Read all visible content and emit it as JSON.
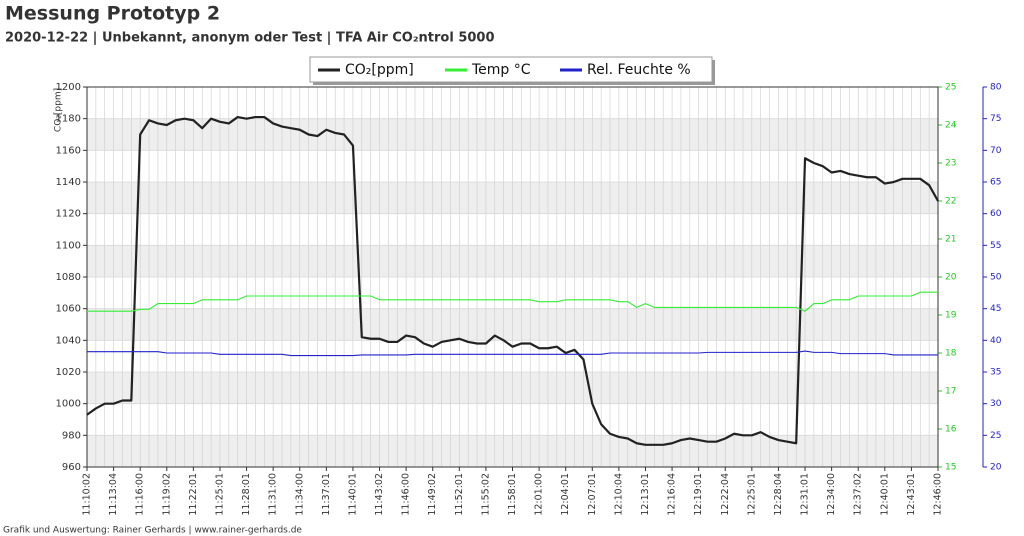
{
  "chart_data": {
    "type": "line",
    "title": "Messung Prototyp 2",
    "subtitle": "2020-12-22 | Unbekannt, anonym oder Test | TFA Air CO₂ntrol 5000",
    "footer": "Grafik und Auswertung: Rainer Gerhards | www.rainer-gerhards.de",
    "ylabel": "CO₂[ppm]",
    "categories": [
      "11:10:02",
      null,
      null,
      "11:13:04",
      null,
      null,
      "11:16:00",
      null,
      null,
      "11:19:02",
      null,
      null,
      "11:22:01",
      null,
      null,
      "11:25:01",
      null,
      null,
      "11:28:01",
      null,
      null,
      "11:31:00",
      null,
      null,
      "11:34:00",
      null,
      null,
      "11:37:01",
      null,
      null,
      "11:40:01",
      null,
      null,
      "11:43:02",
      null,
      null,
      "11:46:00",
      null,
      null,
      "11:49:02",
      null,
      null,
      "11:52:01",
      null,
      null,
      "11:55:02",
      null,
      null,
      "11:58:01",
      null,
      null,
      "12:01:00",
      null,
      null,
      "12:04:01",
      null,
      null,
      "12:07:01",
      null,
      null,
      "12:10:04",
      null,
      null,
      "12:13:01",
      null,
      null,
      "12:16:04",
      null,
      null,
      "12:19:01",
      null,
      null,
      "12:22:04",
      null,
      null,
      "12:25:01",
      null,
      null,
      "12:28:04",
      null,
      null,
      "12:31:01",
      null,
      null,
      "12:34:00",
      null,
      null,
      "12:37:02",
      null,
      null,
      "12:40:01",
      null,
      null,
      "12:43:01",
      null,
      null,
      "12:46:00"
    ],
    "series": [
      {
        "name": "CO₂[ppm]",
        "color": "#222222",
        "axis": "y",
        "values": [
          993,
          997,
          1000,
          1000,
          1002,
          1002,
          1170,
          1179,
          1177,
          1176,
          1179,
          1180,
          1179,
          1174,
          1180,
          1178,
          1177,
          1181,
          1180,
          1181,
          1181,
          1177,
          1175,
          1174,
          1173,
          1170,
          1169,
          1173,
          1171,
          1170,
          1163,
          1042,
          1041,
          1041,
          1039,
          1039,
          1043,
          1042,
          1038,
          1036,
          1039,
          1040,
          1041,
          1039,
          1038,
          1038,
          1043,
          1040,
          1036,
          1038,
          1038,
          1035,
          1035,
          1036,
          1032,
          1034,
          1028,
          1000,
          987,
          981,
          979,
          978,
          975,
          974,
          974,
          974,
          975,
          977,
          978,
          977,
          976,
          976,
          978,
          981,
          980,
          980,
          982,
          979,
          977,
          976,
          975,
          1155,
          1152,
          1150,
          1146,
          1147,
          1145,
          1144,
          1143,
          1143,
          1139,
          1140,
          1142,
          1142,
          1142,
          1138,
          1128
        ]
      },
      {
        "name": "Temp °C",
        "color": "#33ee33",
        "axis": "y2",
        "values": [
          19.1,
          19.1,
          19.1,
          19.1,
          19.1,
          19.1,
          19.15,
          19.15,
          19.3,
          19.3,
          19.3,
          19.3,
          19.3,
          19.4,
          19.4,
          19.4,
          19.4,
          19.4,
          19.5,
          19.5,
          19.5,
          19.5,
          19.5,
          19.5,
          19.5,
          19.5,
          19.5,
          19.5,
          19.5,
          19.5,
          19.5,
          19.5,
          19.5,
          19.4,
          19.4,
          19.4,
          19.4,
          19.4,
          19.4,
          19.4,
          19.4,
          19.4,
          19.4,
          19.4,
          19.4,
          19.4,
          19.4,
          19.4,
          19.4,
          19.4,
          19.4,
          19.35,
          19.35,
          19.35,
          19.4,
          19.4,
          19.4,
          19.4,
          19.4,
          19.4,
          19.35,
          19.35,
          19.2,
          19.3,
          19.2,
          19.2,
          19.2,
          19.2,
          19.2,
          19.2,
          19.2,
          19.2,
          19.2,
          19.2,
          19.2,
          19.2,
          19.2,
          19.2,
          19.2,
          19.2,
          19.2,
          19.1,
          19.3,
          19.3,
          19.4,
          19.4,
          19.4,
          19.5,
          19.5,
          19.5,
          19.5,
          19.5,
          19.5,
          19.5,
          19.6,
          19.6,
          19.6
        ]
      },
      {
        "name": "Rel. Feuchte %",
        "color": "#2222cc",
        "axis": "y3",
        "values": [
          38.2,
          38.2,
          38.2,
          38.2,
          38.2,
          38.2,
          38.2,
          38.2,
          38.2,
          38.0,
          38.0,
          38.0,
          38.0,
          38.0,
          38.0,
          37.8,
          37.8,
          37.8,
          37.8,
          37.8,
          37.8,
          37.8,
          37.8,
          37.6,
          37.6,
          37.6,
          37.6,
          37.6,
          37.6,
          37.6,
          37.6,
          37.7,
          37.7,
          37.7,
          37.7,
          37.7,
          37.7,
          37.8,
          37.8,
          37.8,
          37.8,
          37.8,
          37.8,
          37.8,
          37.8,
          37.8,
          37.8,
          37.8,
          37.8,
          37.8,
          37.8,
          37.8,
          37.8,
          37.8,
          37.8,
          37.8,
          37.8,
          37.8,
          37.8,
          38.0,
          38.0,
          38.0,
          38.0,
          38.0,
          38.0,
          38.0,
          38.0,
          38.0,
          38.0,
          38.0,
          38.1,
          38.1,
          38.1,
          38.1,
          38.1,
          38.1,
          38.1,
          38.1,
          38.1,
          38.1,
          38.1,
          38.3,
          38.1,
          38.1,
          38.1,
          37.9,
          37.9,
          37.9,
          37.9,
          37.9,
          37.9,
          37.7,
          37.7,
          37.7,
          37.7,
          37.7,
          37.7
        ]
      }
    ],
    "ylim": [
      960,
      1200
    ],
    "yticks": [
      960,
      980,
      1000,
      1020,
      1040,
      1060,
      1080,
      1100,
      1120,
      1140,
      1160,
      1180,
      1200
    ],
    "y2lim": [
      15,
      25
    ],
    "y2ticks": [
      15,
      16,
      17,
      18,
      19,
      20,
      21,
      22,
      23,
      24,
      25
    ],
    "y2color": "#22cc22",
    "y3lim": [
      20,
      80
    ],
    "y3ticks": [
      20,
      25,
      30,
      35,
      40,
      45,
      50,
      55,
      60,
      65,
      70,
      75,
      80
    ],
    "y3color": "#2222cc",
    "grid": true,
    "legend": "top"
  }
}
